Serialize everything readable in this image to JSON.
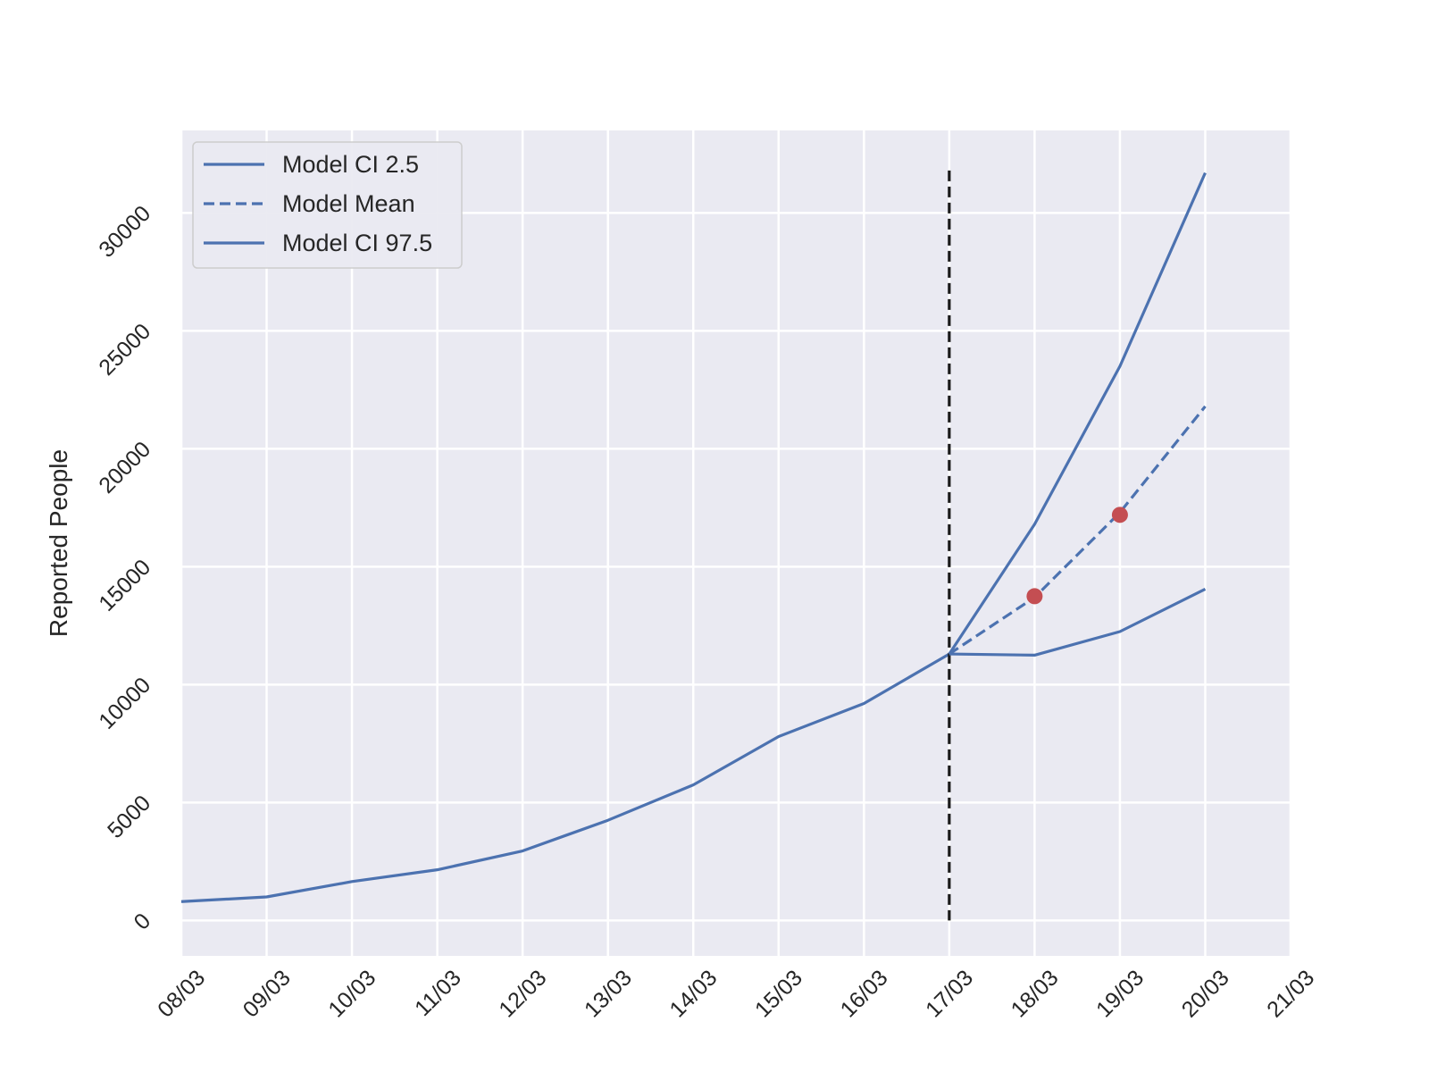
{
  "chart_data": {
    "type": "line",
    "title": "",
    "xlabel": "",
    "ylabel": "Reported People",
    "x_ticks": [
      "08/03",
      "09/03",
      "10/03",
      "11/03",
      "12/03",
      "13/03",
      "14/03",
      "15/03",
      "16/03",
      "17/03",
      "18/03",
      "19/03",
      "20/03",
      "21/03"
    ],
    "y_ticks": [
      0,
      5000,
      10000,
      15000,
      20000,
      25000,
      30000
    ],
    "xlim": [
      "08/03",
      "21/03"
    ],
    "ylim": [
      -1500,
      33500
    ],
    "grid": true,
    "legend_position": "top-left",
    "history": {
      "x": [
        "08/03",
        "09/03",
        "10/03",
        "11/03",
        "12/03",
        "13/03",
        "14/03",
        "15/03",
        "16/03",
        "17/03"
      ],
      "y": [
        800,
        1000,
        1650,
        2150,
        2950,
        4250,
        5750,
        7800,
        9200,
        11300
      ]
    },
    "series": [
      {
        "name": "Model CI 2.5",
        "style": "solid",
        "x": [
          "17/03",
          "18/03",
          "19/03",
          "20/03"
        ],
        "y": [
          11300,
          11250,
          12250,
          14050
        ]
      },
      {
        "name": "Model Mean",
        "style": "dashed",
        "x": [
          "17/03",
          "18/03",
          "19/03",
          "20/03"
        ],
        "y": [
          11300,
          13700,
          17300,
          21800
        ]
      },
      {
        "name": "Model CI 97.5",
        "style": "solid",
        "x": [
          "17/03",
          "18/03",
          "19/03",
          "20/03"
        ],
        "y": [
          11300,
          16800,
          23500,
          31700
        ]
      }
    ],
    "observed_points": {
      "x": [
        "18/03",
        "19/03"
      ],
      "y": [
        13750,
        17200
      ]
    },
    "vertical_line": {
      "x": "17/03",
      "y_range": [
        0,
        31800
      ],
      "style": "dashed"
    },
    "colors": {
      "line": "#4c72b0",
      "points": "#c44e52",
      "vline": "#1a1a1a",
      "background": "#eaeaf2",
      "grid": "#ffffff",
      "text": "#262626"
    }
  }
}
